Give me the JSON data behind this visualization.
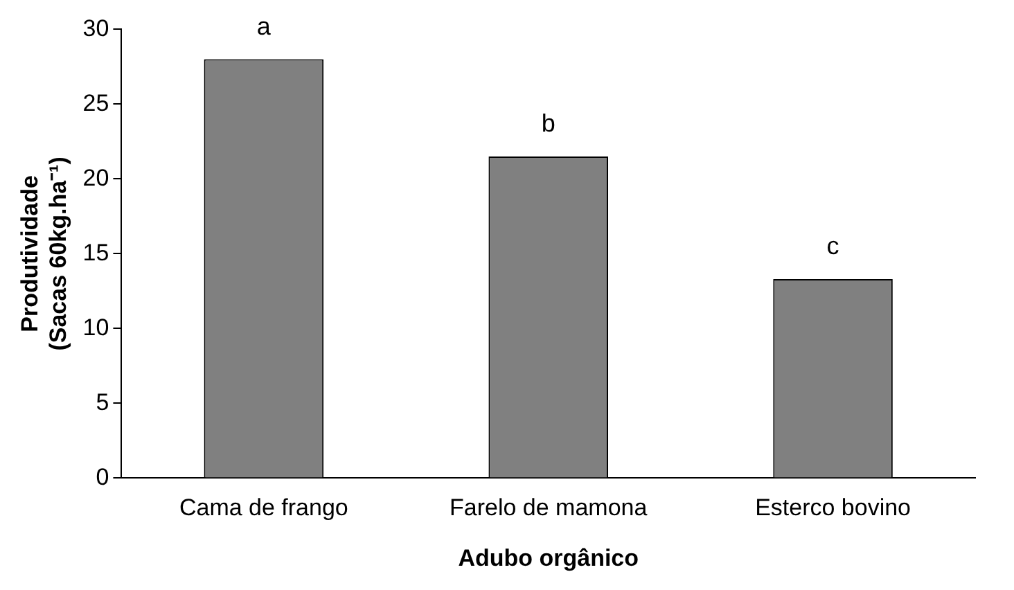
{
  "chart_data": {
    "type": "bar",
    "xlabel": "Adubo orgânico",
    "ylabel": "Produtividade\n(Sacas 60kg.ha⁻¹)",
    "categories": [
      "Cama de frango",
      "Farelo de mamona",
      "Esterco bovino"
    ],
    "values": [
      28,
      21.5,
      13.3
    ],
    "color": "#808080",
    "ylim": [
      0,
      30
    ],
    "yticks": [
      0,
      5,
      10,
      15,
      20,
      25,
      30
    ],
    "grid": false,
    "legend": false,
    "annotations": [
      {
        "text": "a",
        "x": "Cama de frango",
        "y": 28
      },
      {
        "text": "b",
        "x": "Farelo de mamona",
        "y": 21.5
      },
      {
        "text": "c",
        "x": "Esterco bovino",
        "y": 13.3
      }
    ]
  }
}
